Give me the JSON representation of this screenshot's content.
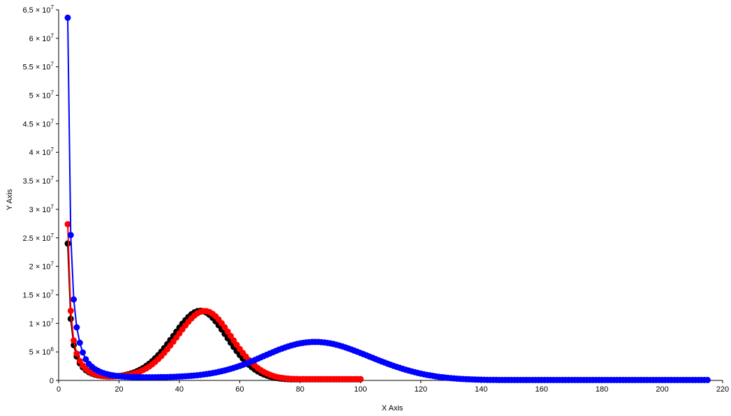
{
  "chart_data": {
    "type": "line",
    "title": "",
    "xlabel": "X Axis",
    "ylabel": "Y Axis",
    "xlim": [
      0,
      220
    ],
    "ylim": [
      0,
      65000000
    ],
    "grid": false,
    "x_ticks": [
      0,
      20,
      40,
      60,
      80,
      100,
      120,
      140,
      160,
      180,
      200,
      220
    ],
    "y_ticks": [
      {
        "value": 0,
        "mant": "0",
        "exp": ""
      },
      {
        "value": 5000000,
        "mant": "5 × 10",
        "exp": "6"
      },
      {
        "value": 10000000,
        "mant": "1 × 10",
        "exp": "7"
      },
      {
        "value": 15000000,
        "mant": "1.5 × 10",
        "exp": "7"
      },
      {
        "value": 20000000,
        "mant": "2 × 10",
        "exp": "7"
      },
      {
        "value": 25000000,
        "mant": "2.5 × 10",
        "exp": "7"
      },
      {
        "value": 30000000,
        "mant": "3 × 10",
        "exp": "7"
      },
      {
        "value": 35000000,
        "mant": "3.5 × 10",
        "exp": "7"
      },
      {
        "value": 40000000,
        "mant": "4 × 10",
        "exp": "7"
      },
      {
        "value": 45000000,
        "mant": "4.5 × 10",
        "exp": "7"
      },
      {
        "value": 50000000,
        "mant": "5 × 10",
        "exp": "7"
      },
      {
        "value": 55000000,
        "mant": "5.5 × 10",
        "exp": "7"
      },
      {
        "value": 60000000,
        "mant": "6 × 10",
        "exp": "7"
      },
      {
        "value": 65000000,
        "mant": "6.5 × 10",
        "exp": "7"
      }
    ],
    "series": [
      {
        "color": "#000000",
        "x_start": 3,
        "x_step": 1,
        "values": [
          24000000,
          10800000,
          6200000,
          4200000,
          3000000,
          2300000,
          1800000,
          1450000,
          1200000,
          1000000,
          880000,
          790000,
          730000,
          700000,
          690000,
          700000,
          730000,
          780000,
          850000,
          950000,
          1070000,
          1220000,
          1400000,
          1620000,
          1880000,
          2180000,
          2530000,
          2930000,
          3380000,
          3880000,
          4430000,
          5030000,
          5680000,
          6360000,
          7070000,
          7800000,
          8530000,
          9250000,
          9940000,
          10570000,
          11130000,
          11590000,
          11930000,
          12140000,
          12200000,
          12110000,
          11870000,
          11490000,
          10980000,
          10370000,
          9680000,
          8940000,
          8170000,
          7390000,
          6610000,
          5860000,
          5140000,
          4460000,
          3840000,
          3270000,
          2760000,
          2310000,
          1920000,
          1580000,
          1290000,
          1040000,
          840000,
          670000,
          540000,
          430000,
          350000,
          290000,
          250000,
          220000,
          200000,
          190000,
          190000,
          190000,
          190000,
          190000,
          190000,
          190000,
          190000,
          190000,
          190000,
          190000,
          190000,
          190000,
          190000,
          190000,
          190000,
          190000,
          190000,
          190000,
          190000,
          190000,
          190000,
          190000
        ]
      },
      {
        "color": "#ff0000",
        "x_start": 3,
        "x_step": 1,
        "values": [
          27400000,
          12200000,
          7000000,
          4700000,
          3400000,
          2600000,
          2000000,
          1600000,
          1300000,
          1100000,
          950000,
          840000,
          770000,
          730000,
          710000,
          710000,
          720000,
          750000,
          800000,
          870000,
          960000,
          1070000,
          1210000,
          1380000,
          1580000,
          1820000,
          2110000,
          2440000,
          2820000,
          3250000,
          3730000,
          4260000,
          4840000,
          5460000,
          6120000,
          6810000,
          7520000,
          8240000,
          8950000,
          9640000,
          10280000,
          10870000,
          11370000,
          11770000,
          12040000,
          12170000,
          12150000,
          11980000,
          11670000,
          11230000,
          10670000,
          10020000,
          9310000,
          8560000,
          7780000,
          7000000,
          6240000,
          5510000,
          4820000,
          4180000,
          3590000,
          3060000,
          2580000,
          2160000,
          1800000,
          1480000,
          1210000,
          990000,
          800000,
          650000,
          530000,
          440000,
          370000,
          320000,
          280000,
          260000,
          240000,
          230000,
          230000,
          230000,
          230000,
          230000,
          230000,
          230000,
          230000,
          230000,
          230000,
          230000,
          230000,
          230000,
          230000,
          230000,
          230000,
          230000,
          230000,
          230000,
          230000,
          230000
        ]
      },
      {
        "color": "#0000ff",
        "x_start": 3,
        "x_step": 1,
        "values": [
          63600000,
          25500000,
          14200000,
          9300000,
          6600000,
          4900000,
          3700000,
          2900000,
          2400000,
          2000000,
          1700000,
          1450000,
          1250000,
          1100000,
          980000,
          880000,
          800000,
          740000,
          690000,
          650000,
          620000,
          600000,
          580000,
          570000,
          560000,
          550000,
          550000,
          550000,
          550000,
          550000,
          560000,
          570000,
          580000,
          590000,
          610000,
          630000,
          650000,
          670000,
          700000,
          730000,
          770000,
          810000,
          860000,
          910000,
          970000,
          1040000,
          1110000,
          1190000,
          1280000,
          1380000,
          1490000,
          1610000,
          1740000,
          1880000,
          2030000,
          2190000,
          2360000,
          2540000,
          2730000,
          2930000,
          3140000,
          3360000,
          3580000,
          3810000,
          4040000,
          4270000,
          4500000,
          4730000,
          4950000,
          5170000,
          5380000,
          5580000,
          5770000,
          5950000,
          6110000,
          6260000,
          6390000,
          6500000,
          6590000,
          6660000,
          6710000,
          6740000,
          6750000,
          6740000,
          6710000,
          6660000,
          6590000,
          6500000,
          6390000,
          6260000,
          6120000,
          5960000,
          5790000,
          5610000,
          5420000,
          5220000,
          5020000,
          4810000,
          4600000,
          4390000,
          4170000,
          3960000,
          3750000,
          3540000,
          3330000,
          3130000,
          2930000,
          2740000,
          2550000,
          2370000,
          2200000,
          2030000,
          1870000,
          1720000,
          1580000,
          1440000,
          1310000,
          1190000,
          1080000,
          970000,
          880000,
          790000,
          700000,
          630000,
          560000,
          500000,
          440000,
          390000,
          350000,
          310000,
          270000,
          240000,
          210000,
          190000,
          170000,
          150000,
          130000,
          120000,
          110000,
          100000,
          90000,
          80000,
          80000,
          70000,
          70000,
          70000,
          70000,
          70000,
          70000,
          70000,
          70000,
          70000,
          70000,
          70000,
          70000,
          70000,
          70000,
          70000,
          70000,
          70000,
          70000,
          70000,
          70000,
          70000,
          70000,
          70000,
          70000,
          70000,
          70000,
          70000,
          70000,
          70000,
          70000,
          70000,
          70000,
          70000,
          70000,
          70000,
          70000,
          70000,
          70000,
          70000,
          70000,
          70000,
          70000,
          70000,
          70000,
          70000,
          70000,
          70000,
          70000,
          70000,
          70000,
          70000,
          70000,
          70000,
          70000,
          70000,
          70000,
          70000,
          70000,
          70000,
          70000,
          70000,
          70000,
          70000,
          70000,
          70000,
          70000,
          70000,
          70000,
          70000,
          70000
        ]
      }
    ]
  }
}
